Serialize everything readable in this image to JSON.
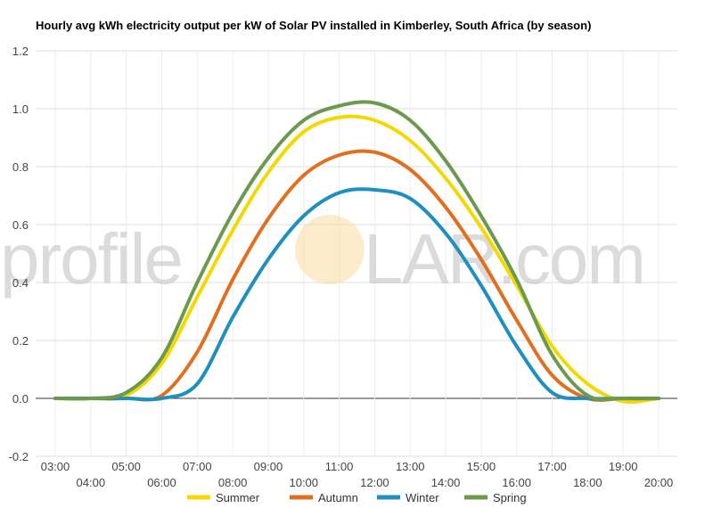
{
  "chart_data": {
    "type": "line",
    "title": "Hourly avg kWh electricity output per kW of Solar PV installed in Kimberley, South Africa (by season)",
    "xlabel": "",
    "ylabel": "",
    "ylim": [
      -0.2,
      1.2
    ],
    "yticks": [
      "-0.2",
      "0.0",
      "0.2",
      "0.4",
      "0.6",
      "0.8",
      "1.0",
      "1.2"
    ],
    "categories": [
      "03:00",
      "04:00",
      "05:00",
      "06:00",
      "07:00",
      "08:00",
      "09:00",
      "10:00",
      "11:00",
      "12:00",
      "13:00",
      "14:00",
      "15:00",
      "16:00",
      "17:00",
      "18:00",
      "19:00",
      "20:00"
    ],
    "grid": true,
    "legend_position": "bottom",
    "series": [
      {
        "name": "Summer",
        "color": "#f5d800",
        "values": [
          0,
          0,
          0.01,
          0.12,
          0.35,
          0.58,
          0.78,
          0.92,
          0.97,
          0.96,
          0.89,
          0.76,
          0.59,
          0.39,
          0.18,
          0.05,
          -0.01,
          0
        ]
      },
      {
        "name": "Autumn",
        "color": "#e07020",
        "values": [
          0,
          0,
          0,
          0.01,
          0.16,
          0.41,
          0.62,
          0.77,
          0.84,
          0.85,
          0.79,
          0.66,
          0.48,
          0.27,
          0.08,
          0,
          0,
          0
        ]
      },
      {
        "name": "Winter",
        "color": "#1f8fbf",
        "values": [
          0,
          0,
          0,
          0,
          0.05,
          0.28,
          0.48,
          0.63,
          0.71,
          0.72,
          0.69,
          0.57,
          0.39,
          0.18,
          0.02,
          0,
          0,
          0
        ]
      },
      {
        "name": "Spring",
        "color": "#6b9a4e",
        "values": [
          0,
          0,
          0.02,
          0.14,
          0.4,
          0.64,
          0.83,
          0.96,
          1.01,
          1.02,
          0.96,
          0.82,
          0.63,
          0.41,
          0.15,
          0.01,
          0,
          0
        ]
      }
    ]
  },
  "watermark": {
    "left": "profile",
    "right": "LAR.com"
  }
}
